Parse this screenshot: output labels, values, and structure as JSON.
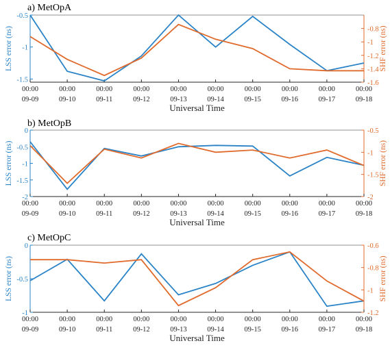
{
  "colors": {
    "lss": "#2a83c6",
    "shf": "#e06a2b",
    "axis": "#262626"
  },
  "chart_data": [
    {
      "type": "line",
      "title": "a) MetOpA",
      "xlabel": "Universal Time",
      "ylabel_left": "LSS error (ns)",
      "ylabel_right": "SHF error (ns)",
      "categories": [
        "09-09",
        "09-10",
        "09-11",
        "09-12",
        "09-13",
        "09-14",
        "09-15",
        "09-16",
        "09-17",
        "09-18"
      ],
      "time_label": "00:00",
      "left_axis": {
        "ylim": [
          -1.55,
          -0.5
        ],
        "ticks": [
          -0.5,
          -1,
          -1.5
        ],
        "tick_labels": [
          "-0.5",
          "-1",
          "-1.5"
        ]
      },
      "right_axis": {
        "ylim": [
          -1.6,
          -0.6
        ],
        "ticks": [
          -0.8,
          -1,
          -1.2,
          -1.4,
          -1.6
        ],
        "tick_labels": [
          "-0.8",
          "-1",
          "-1.2",
          "-1.4",
          "-1.6"
        ]
      },
      "series": [
        {
          "name": "LSS",
          "axis": "left",
          "values": [
            -0.5,
            -1.38,
            -1.53,
            -1.14,
            -0.5,
            -1.0,
            -0.52,
            -0.96,
            -1.37,
            -1.25
          ]
        },
        {
          "name": "SHF",
          "axis": "right",
          "values": [
            -0.92,
            -1.26,
            -1.5,
            -1.24,
            -0.74,
            -0.96,
            -1.1,
            -1.4,
            -1.43,
            -1.43
          ]
        }
      ]
    },
    {
      "type": "line",
      "title": "b) MetOpB",
      "xlabel": "Universal Time",
      "ylabel_left": "LSS error (ns)",
      "ylabel_right": "SHF error (ns)",
      "categories": [
        "09-09",
        "09-10",
        "09-11",
        "09-12",
        "09-13",
        "09-14",
        "09-15",
        "09-16",
        "09-17",
        "09-18"
      ],
      "time_label": "00:00",
      "left_axis": {
        "ylim": [
          -2,
          0
        ],
        "ticks": [
          0,
          -0.5,
          -1,
          -1.5,
          -2
        ],
        "tick_labels": [
          "0",
          "-0.5",
          "-1",
          "-1.5",
          "-2"
        ]
      },
      "right_axis": {
        "ylim": [
          -2,
          -0.5
        ],
        "ticks": [
          -0.5,
          -1,
          -1.5,
          -2
        ],
        "tick_labels": [
          "-0.5",
          "-1",
          "-1.5",
          "-2"
        ]
      },
      "series": [
        {
          "name": "LSS",
          "axis": "left",
          "values": [
            -0.35,
            -1.78,
            -0.55,
            -0.78,
            -0.5,
            -0.46,
            -0.48,
            -1.38,
            -0.82,
            -1.06
          ]
        },
        {
          "name": "SHF",
          "axis": "right",
          "values": [
            -0.85,
            -1.7,
            -0.93,
            -1.13,
            -0.8,
            -1.0,
            -0.95,
            -1.13,
            -0.95,
            -1.3
          ]
        }
      ]
    },
    {
      "type": "line",
      "title": "c) MetOpC",
      "xlabel": "Universal Time",
      "ylabel_left": "LSS error (ns)",
      "ylabel_right": "SHF error (ns)",
      "categories": [
        "09-09",
        "09-10",
        "09-11",
        "09-12",
        "09-13",
        "09-14",
        "09-15",
        "09-16",
        "09-17",
        "09-18"
      ],
      "time_label": "00:00",
      "left_axis": {
        "ylim": [
          -1,
          0
        ],
        "ticks": [
          0,
          -0.5,
          -1
        ],
        "tick_labels": [
          "0",
          "-0.5",
          "-1"
        ]
      },
      "right_axis": {
        "ylim": [
          -1.2,
          -0.6
        ],
        "ticks": [
          -0.6,
          -0.8,
          -1,
          -1.2
        ],
        "tick_labels": [
          "-0.6",
          "-0.8",
          "-1",
          "-1.2"
        ]
      },
      "series": [
        {
          "name": "LSS",
          "axis": "left",
          "values": [
            -0.53,
            -0.21,
            -0.83,
            -0.13,
            -0.74,
            -0.57,
            -0.3,
            -0.1,
            -0.91,
            -0.83
          ]
        },
        {
          "name": "SHF",
          "axis": "right",
          "values": [
            -0.73,
            -0.73,
            -0.76,
            -0.73,
            -1.14,
            -0.98,
            -0.73,
            -0.66,
            -0.92,
            -1.1
          ]
        }
      ]
    }
  ]
}
